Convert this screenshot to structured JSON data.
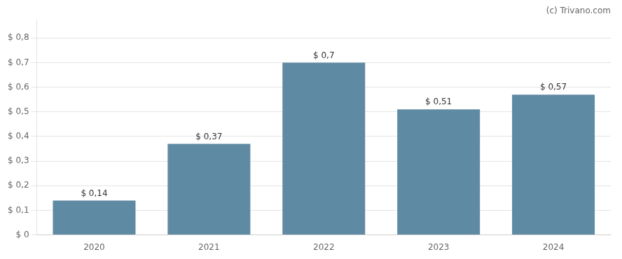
{
  "chart_data": {
    "type": "bar",
    "categories": [
      "2020",
      "2021",
      "2022",
      "2023",
      "2024"
    ],
    "values": [
      0.14,
      0.37,
      0.7,
      0.51,
      0.57
    ],
    "value_labels": [
      "$ 0,14",
      "$ 0,37",
      "$ 0,7",
      "$ 0,51",
      "$ 0,57"
    ],
    "data_labels": true,
    "color": "#5f8aa3",
    "ylim": [
      0,
      0.875
    ],
    "yticks": [
      {
        "value": 0.0,
        "label": "$ 0"
      },
      {
        "value": 0.1,
        "label": "$ 0,1"
      },
      {
        "value": 0.2,
        "label": "$ 0,2"
      },
      {
        "value": 0.3,
        "label": "$ 0,3"
      },
      {
        "value": 0.4,
        "label": "$ 0,4"
      },
      {
        "value": 0.5,
        "label": "$ 0,5"
      },
      {
        "value": 0.6,
        "label": "$ 0,6"
      },
      {
        "value": 0.7,
        "label": "$ 0,7"
      },
      {
        "value": 0.8,
        "label": "$ 0,8"
      }
    ],
    "annotation": "(c) Trivano.com",
    "grid": true
  }
}
